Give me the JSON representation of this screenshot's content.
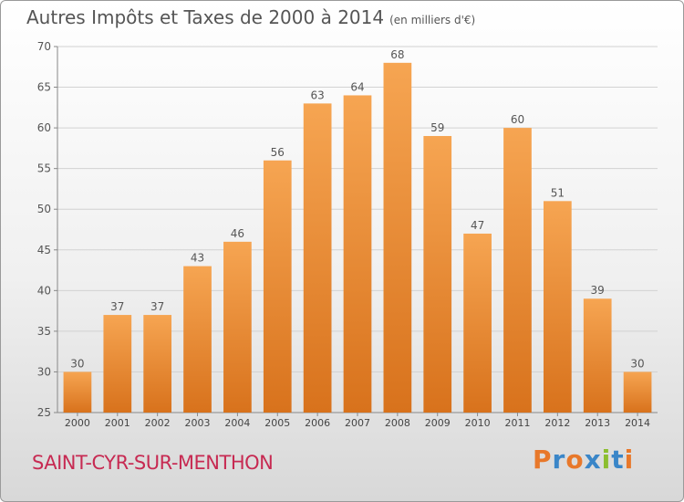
{
  "title": "Autres Impôts et Taxes de 2000 à 2014",
  "unit_note": "(en milliers d'€)",
  "commune": "SAINT-CYR-SUR-MENTHON",
  "logo": "Proxiti",
  "colors": {
    "bar_top": "#f6a552",
    "bar_bottom": "#d8721c",
    "commune": "#c72a52"
  },
  "chart_data": {
    "type": "bar",
    "title": "Autres Impôts et Taxes de 2000 à 2014",
    "ylabel": "",
    "xlabel": "",
    "categories": [
      "2000",
      "2001",
      "2002",
      "2003",
      "2004",
      "2005",
      "2006",
      "2007",
      "2008",
      "2009",
      "2010",
      "2011",
      "2012",
      "2013",
      "2014"
    ],
    "values": [
      30,
      37,
      37,
      43,
      46,
      56,
      63,
      64,
      68,
      59,
      47,
      60,
      51,
      39,
      30
    ],
    "ylim": [
      25,
      70
    ],
    "yticks": [
      25,
      30,
      35,
      40,
      45,
      50,
      55,
      60,
      65,
      70
    ],
    "grid": true
  }
}
